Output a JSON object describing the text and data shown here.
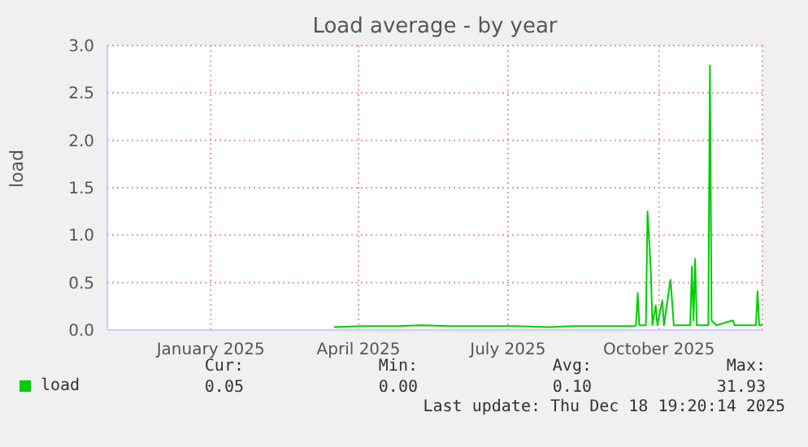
{
  "chart_data": {
    "type": "line",
    "title": "Load average - by year",
    "ylabel": "load",
    "x": [
      "2025-04-01",
      "2025-04-20",
      "2025-05-10",
      "2025-05-25",
      "2025-06-10",
      "2025-07-01",
      "2025-07-20",
      "2025-08-10",
      "2025-08-25",
      "2025-09-15",
      "2025-10-01",
      "2025-10-02",
      "2025-10-03",
      "2025-10-04",
      "2025-10-08",
      "2025-10-09",
      "2025-10-11",
      "2025-10-12",
      "2025-10-14",
      "2025-10-15",
      "2025-10-18",
      "2025-10-19",
      "2025-10-23",
      "2025-10-25",
      "2025-11-04",
      "2025-11-05",
      "2025-11-06",
      "2025-11-07",
      "2025-11-08",
      "2025-11-15",
      "2025-11-16",
      "2025-11-17",
      "2025-11-20",
      "2025-11-30",
      "2025-12-01",
      "2025-12-14",
      "2025-12-15",
      "2025-12-16",
      "2025-12-18"
    ],
    "series": [
      {
        "name": "load",
        "color": "#00cc00",
        "values": [
          0.03,
          0.04,
          0.04,
          0.05,
          0.04,
          0.04,
          0.04,
          0.03,
          0.04,
          0.04,
          0.04,
          0.05,
          0.39,
          0.05,
          0.05,
          1.25,
          0.63,
          0.05,
          0.26,
          0.05,
          0.31,
          0.05,
          0.53,
          0.05,
          0.05,
          0.67,
          0.1,
          0.75,
          0.05,
          0.05,
          2.79,
          0.1,
          0.05,
          0.1,
          0.05,
          0.05,
          0.41,
          0.05,
          0.05
        ]
      }
    ],
    "xlim": [
      "2024-11-14",
      "2025-12-18"
    ],
    "xticks": [
      {
        "value": "2025-01-16",
        "label": "January 2025"
      },
      {
        "value": "2025-04-16",
        "label": "April 2025"
      },
      {
        "value": "2025-07-16",
        "label": "July 2025"
      },
      {
        "value": "2025-10-16",
        "label": "October 2025"
      }
    ],
    "ylim": [
      0,
      3
    ],
    "yticks": [
      {
        "value": 0,
        "label": "0.0"
      },
      0.5,
      {
        "value": 1,
        "label": "1.0"
      },
      1.5,
      {
        "value": 2,
        "label": "2.0"
      },
      2.5,
      {
        "value": 3,
        "label": "3.0"
      }
    ],
    "grid": true,
    "legend": "bottom left",
    "marker": "none",
    "line_style": "solid",
    "annotations": [
      "Cur:",
      "Min:",
      "Avg:",
      "Max:",
      "0.05",
      "0.00",
      "0.10",
      "31.93",
      "Last update: Thu Dec 18 19:20:14 2025"
    ]
  }
}
